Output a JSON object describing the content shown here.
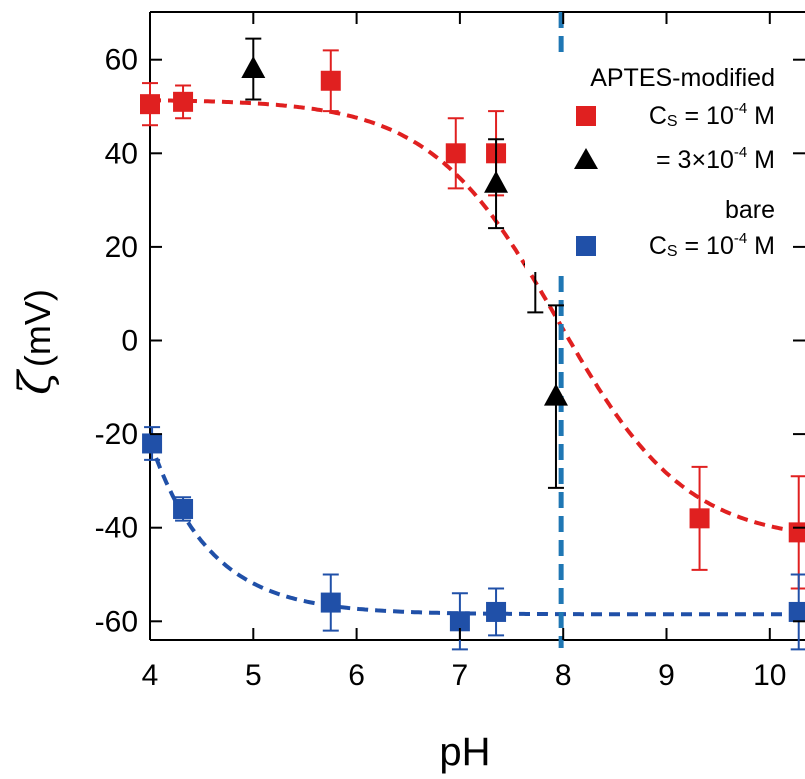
{
  "chart_data": {
    "type": "scatter",
    "xlabel": "pH",
    "ylabel_symbol": "ζ",
    "ylabel_unit": "(mV)",
    "xlim": [
      4,
      10.3
    ],
    "ylim": [
      -70,
      70
    ],
    "xticks": [
      4,
      5,
      6,
      7,
      8,
      9,
      10
    ],
    "yticks": [
      60,
      40,
      20,
      0,
      -20,
      -40,
      -60
    ],
    "ytick_labels": [
      "60",
      "40",
      "20",
      "0",
      "-20",
      "-40",
      "-60"
    ],
    "vline": {
      "x": 7.98,
      "color": "#1f77b4"
    },
    "legend": {
      "placement": "top-right",
      "group1": "APTES-modified",
      "group2": "bare",
      "entries": [
        {
          "series": 0,
          "prefix": "C",
          "sub": "S",
          "text": " = 10",
          "sup": "-4",
          "suffix": " M"
        },
        {
          "series": 1,
          "prefix": "",
          "sub": "",
          "text": " = 3×10",
          "sup": "-4",
          "suffix": " M"
        },
        {
          "series": 2,
          "prefix": "C",
          "sub": "S",
          "text": " = 10",
          "sup": "-4",
          "suffix": " M"
        }
      ]
    },
    "series": [
      {
        "marker": "square",
        "color": "#e02020",
        "points": [
          {
            "x": 4.0,
            "y": 50.5,
            "err": 4.5
          },
          {
            "x": 4.32,
            "y": 51.0,
            "err": 3.5
          },
          {
            "x": 5.75,
            "y": 55.5,
            "err": 6.5
          },
          {
            "x": 6.96,
            "y": 40.0,
            "err": 7.5
          },
          {
            "x": 7.35,
            "y": 40.0,
            "err": 9.0
          },
          {
            "x": 9.32,
            "y": -38.0,
            "err": 11.0
          },
          {
            "x": 10.28,
            "y": -41.0,
            "err": 12.0
          }
        ],
        "fit": {
          "color": "#e02020",
          "upper": 51.5,
          "lower": -43,
          "mid": 7.95,
          "width": 0.62
        }
      },
      {
        "marker": "triangle",
        "color": "#000000",
        "points": [
          {
            "x": 5.0,
            "y": 58.0,
            "err": 6.5
          },
          {
            "x": 7.35,
            "y": 33.5,
            "err": 9.5
          },
          {
            "x": 7.73,
            "y": 18.0,
            "err": 12.0
          },
          {
            "x": 7.93,
            "y": -12.0,
            "err": 19.5
          }
        ]
      },
      {
        "marker": "square",
        "color": "#2050a8",
        "points": [
          {
            "x": 4.02,
            "y": -22.0,
            "err": 3.5
          },
          {
            "x": 4.32,
            "y": -36.0,
            "err": 2.5
          },
          {
            "x": 5.75,
            "y": -56.0,
            "err": 6.0
          },
          {
            "x": 7.0,
            "y": -60.0,
            "err": 6.0
          },
          {
            "x": 7.35,
            "y": -58.0,
            "err": 5.0
          },
          {
            "x": 10.28,
            "y": -58.0,
            "err": 8.0
          }
        ],
        "fit": {
          "color": "#2050a8",
          "plateau": -58.5,
          "amplitude": 37,
          "start": 4.0,
          "decay": 0.58
        }
      }
    ]
  }
}
